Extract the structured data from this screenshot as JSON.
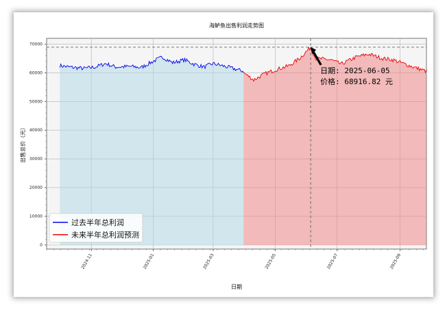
{
  "chart_data": {
    "type": "area",
    "title": "海鲈鱼出售利润走势图",
    "xlabel": "日期",
    "ylabel": "出售总价（元）",
    "ylim": [
      0,
      70000
    ],
    "y_ticks": [
      0,
      10000,
      20000,
      30000,
      40000,
      50000,
      60000,
      70000
    ],
    "x_range": [
      "2024-09-18",
      "2025-09-27"
    ],
    "x_ticks": [
      "2024-11",
      "2025-01",
      "2025-03",
      "2025-05",
      "2025-07",
      "2025-09"
    ],
    "grid": true,
    "legend": "lower-left",
    "reference_line": {
      "value": 68916.82,
      "date": "2025-06-05"
    },
    "annotation": {
      "date_label": "日期: 2025-06-05",
      "price_label": "价格: 68916.82 元",
      "date": "2025-06-05",
      "value": 68916.82
    },
    "series": [
      {
        "name": "过去半年总利润",
        "color": "#0000ee",
        "fill": "#add8e6",
        "x_start": "2024-10-01",
        "x_end": "2025-03-31",
        "keypoints": [
          [
            "2024-10-01",
            62500
          ],
          [
            "2024-10-10",
            62000
          ],
          [
            "2024-10-25",
            61500
          ],
          [
            "2024-11-05",
            62000
          ],
          [
            "2024-11-15",
            63200
          ],
          [
            "2024-11-25",
            62000
          ],
          [
            "2024-12-10",
            62200
          ],
          [
            "2024-12-20",
            61800
          ],
          [
            "2025-01-01",
            64000
          ],
          [
            "2025-01-10",
            65500
          ],
          [
            "2025-01-20",
            63500
          ],
          [
            "2025-02-01",
            64500
          ],
          [
            "2025-02-10",
            63000
          ],
          [
            "2025-02-20",
            62000
          ],
          [
            "2025-03-01",
            63200
          ],
          [
            "2025-03-15",
            62000
          ],
          [
            "2025-03-31",
            60500
          ]
        ]
      },
      {
        "name": "未来半年总利润预测",
        "color": "#ee0000",
        "fill": "#f08080",
        "x_start": "2025-03-31",
        "x_end": "2025-09-27",
        "keypoints": [
          [
            "2025-03-31",
            60000
          ],
          [
            "2025-04-10",
            57500
          ],
          [
            "2025-04-20",
            59500
          ],
          [
            "2025-05-01",
            61000
          ],
          [
            "2025-05-15",
            62500
          ],
          [
            "2025-05-25",
            65000
          ],
          [
            "2025-06-05",
            68916.82
          ],
          [
            "2025-06-10",
            65000
          ],
          [
            "2025-06-25",
            64500
          ],
          [
            "2025-07-05",
            63000
          ],
          [
            "2025-07-20",
            65500
          ],
          [
            "2025-08-01",
            66500
          ],
          [
            "2025-08-15",
            65000
          ],
          [
            "2025-08-25",
            64500
          ],
          [
            "2025-09-10",
            62500
          ],
          [
            "2025-09-27",
            60500
          ]
        ]
      }
    ]
  }
}
